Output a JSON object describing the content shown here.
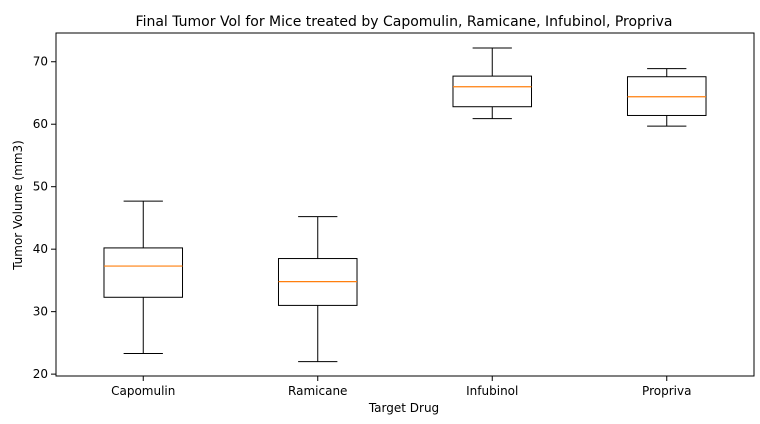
{
  "chart_data": {
    "type": "box",
    "title": "Final Tumor Vol for Mice treated by Capomulin, Ramicane, Infubinol, Propriva",
    "xlabel": "Target Drug",
    "ylabel": "Tumor Volume (mm3)",
    "ylim": [
      19.7,
      74.6
    ],
    "yticks": [
      20,
      30,
      40,
      50,
      60,
      70
    ],
    "categories": [
      "Capomulin",
      "Ramicane",
      "Infubinol",
      "Propriva"
    ],
    "boxes": [
      {
        "name": "Capomulin",
        "whisker_low": 23.3,
        "q1": 32.3,
        "median": 37.3,
        "q3": 40.2,
        "whisker_high": 47.7
      },
      {
        "name": "Ramicane",
        "whisker_low": 22.0,
        "q1": 31.0,
        "median": 34.8,
        "q3": 38.5,
        "whisker_high": 45.2
      },
      {
        "name": "Infubinol",
        "whisker_low": 60.9,
        "q1": 62.8,
        "median": 66.0,
        "q3": 67.7,
        "whisker_high": 72.2
      },
      {
        "name": "Propriva",
        "whisker_low": 59.7,
        "q1": 61.4,
        "median": 64.4,
        "q3": 67.6,
        "whisker_high": 68.9
      }
    ],
    "median_color": "#ff7f0e",
    "box_color": "#000000",
    "grid": false,
    "legend": "none"
  }
}
